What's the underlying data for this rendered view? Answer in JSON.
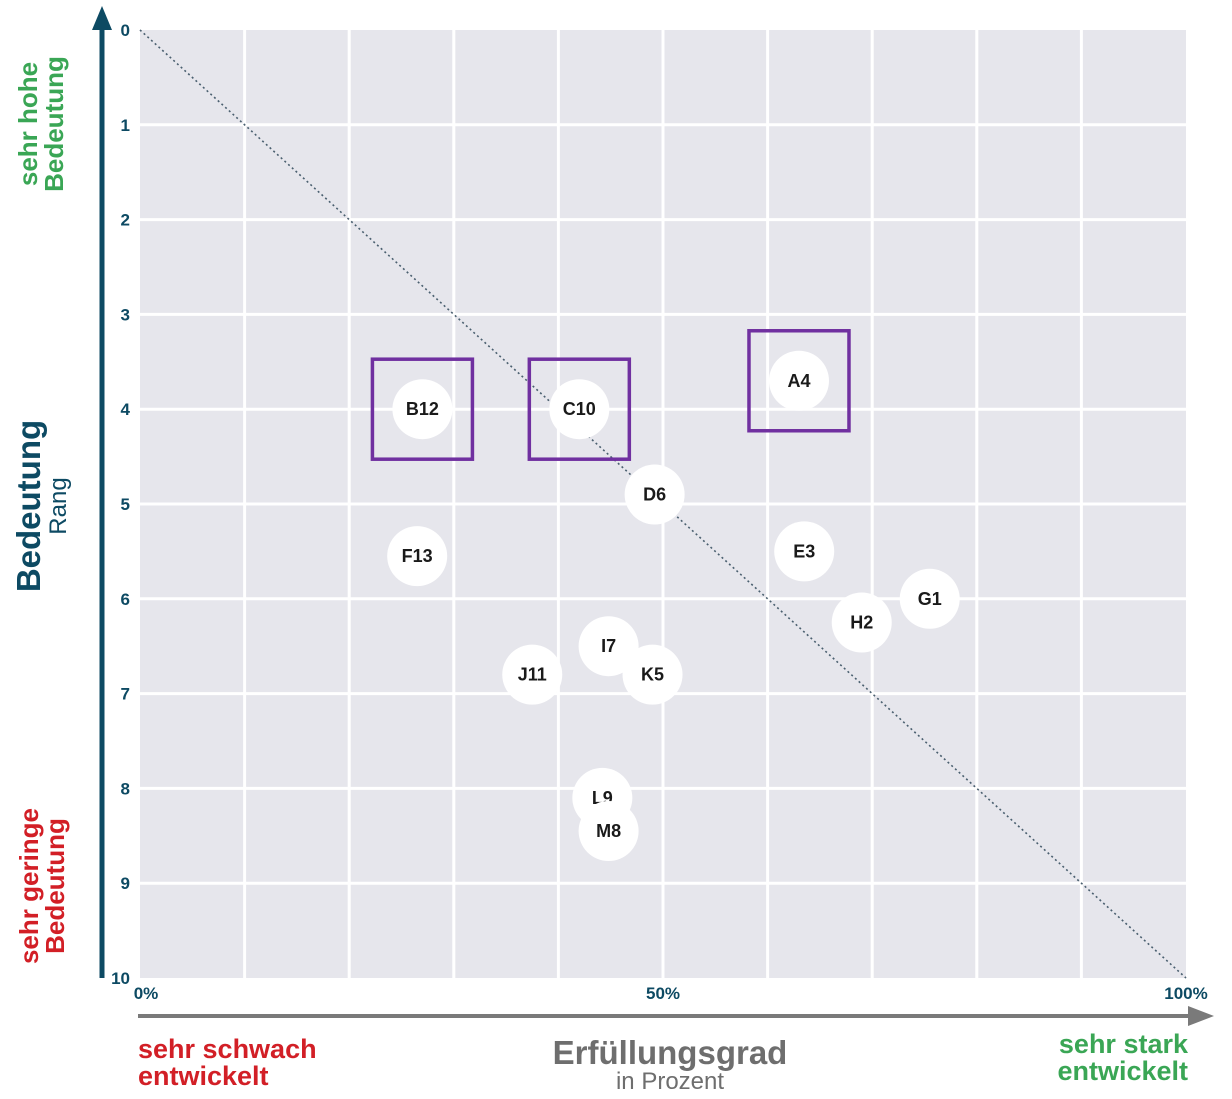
{
  "colors": {
    "plot_bg": "#e6e6ec",
    "grid": "#ffffff",
    "axis_navy": "#0d4a63",
    "x_arrow": "#7a7a7a",
    "positive": "#3aa655",
    "negative": "#d21f26",
    "highlight_box": "#7030a0",
    "point_fill": "#ffffff",
    "diagonal": "#4a5f6f"
  },
  "labels": {
    "y_title": "Bedeutung",
    "y_subtitle": "Rang",
    "y_top_line1": "sehr hohe",
    "y_top_line2": "Bedeutung",
    "y_bottom_line1": "sehr geringe",
    "y_bottom_line2": "Bedeutung",
    "x_title": "Erfüllungsgrad",
    "x_subtitle": "in Prozent",
    "x_left_line1": "sehr schwach",
    "x_left_line2": "entwickelt",
    "x_right_line1": "sehr stark",
    "x_right_line2": "entwickelt"
  },
  "chart_data": {
    "type": "scatter",
    "title": "",
    "xlabel": "Erfüllungsgrad in Prozent",
    "ylabel": "Bedeutung Rang",
    "xlim": [
      0,
      100
    ],
    "ylim": [
      0,
      10
    ],
    "y_inverted": true,
    "grid": true,
    "x_ticks": [
      {
        "value": 0,
        "label": "0%"
      },
      {
        "value": 50,
        "label": "50%"
      },
      {
        "value": 100,
        "label": "100%"
      }
    ],
    "y_ticks": [
      {
        "value": 0,
        "label": "0"
      },
      {
        "value": 1,
        "label": "1"
      },
      {
        "value": 2,
        "label": "2"
      },
      {
        "value": 3,
        "label": "3"
      },
      {
        "value": 4,
        "label": "4"
      },
      {
        "value": 5,
        "label": "5"
      },
      {
        "value": 6,
        "label": "6"
      },
      {
        "value": 7,
        "label": "7"
      },
      {
        "value": 8,
        "label": "8"
      },
      {
        "value": 9,
        "label": "9"
      },
      {
        "value": 10,
        "label": "10"
      }
    ],
    "diagonal_reference": {
      "from": [
        0,
        0
      ],
      "to": [
        100,
        10
      ]
    },
    "points": [
      {
        "label": "A4",
        "x": 63.0,
        "y": 3.7,
        "highlighted": true
      },
      {
        "label": "B12",
        "x": 27.0,
        "y": 4.0,
        "highlighted": true
      },
      {
        "label": "C10",
        "x": 42.0,
        "y": 4.0,
        "highlighted": true
      },
      {
        "label": "D6",
        "x": 49.2,
        "y": 4.9,
        "highlighted": false
      },
      {
        "label": "E3",
        "x": 63.5,
        "y": 5.5,
        "highlighted": false
      },
      {
        "label": "F13",
        "x": 26.5,
        "y": 5.55,
        "highlighted": false
      },
      {
        "label": "G1",
        "x": 75.5,
        "y": 6.0,
        "highlighted": false
      },
      {
        "label": "H2",
        "x": 69.0,
        "y": 6.25,
        "highlighted": false
      },
      {
        "label": "I7",
        "x": 44.8,
        "y": 6.5,
        "highlighted": false
      },
      {
        "label": "J11",
        "x": 37.5,
        "y": 6.8,
        "highlighted": false
      },
      {
        "label": "K5",
        "x": 49.0,
        "y": 6.8,
        "highlighted": false
      },
      {
        "label": "L9",
        "x": 44.2,
        "y": 8.1,
        "highlighted": false
      },
      {
        "label": "M8",
        "x": 44.8,
        "y": 8.45,
        "highlighted": false
      }
    ]
  }
}
